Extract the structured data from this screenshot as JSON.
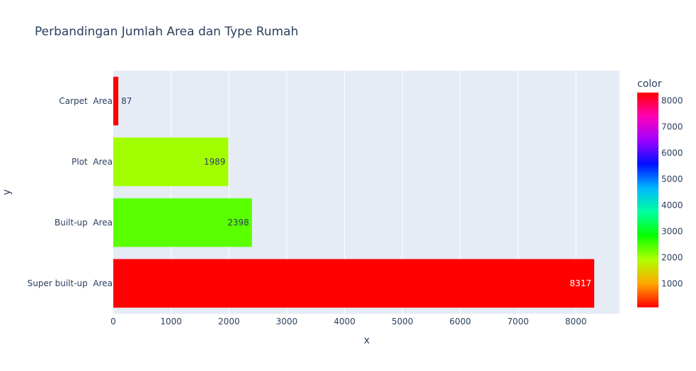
{
  "chart_data": {
    "type": "bar",
    "orientation": "horizontal",
    "title": "Perbandingan Jumlah Area dan Type Rumah",
    "xlabel": "x",
    "ylabel": "y",
    "xlim": [
      0,
      8755
    ],
    "x_ticks": [
      0,
      1000,
      2000,
      3000,
      4000,
      5000,
      6000,
      7000,
      8000
    ],
    "categories": [
      "Super built-up  Area",
      "Built-up  Area",
      "Plot  Area",
      "Carpet  Area"
    ],
    "values": [
      8317,
      2398,
      1989,
      87
    ],
    "bar_colors": [
      "#ff0000",
      "#5aff00",
      "#a2ff00",
      "#ff0000"
    ],
    "grid": true,
    "colorbar": {
      "title": "color",
      "range": [
        87,
        8317
      ],
      "ticks": [
        1000,
        2000,
        3000,
        4000,
        5000,
        6000,
        7000,
        8000
      ],
      "colorscale": [
        "#ff0000",
        "#ffa700",
        "#afff00",
        "#08ff00",
        "#00ff9f",
        "#00b7ff",
        "#0010ff",
        "#9f00ff",
        "#ff00b7",
        "#ff0000"
      ]
    },
    "plot_bg": "#e5ecf6",
    "text_color": "#2a3f5f"
  }
}
